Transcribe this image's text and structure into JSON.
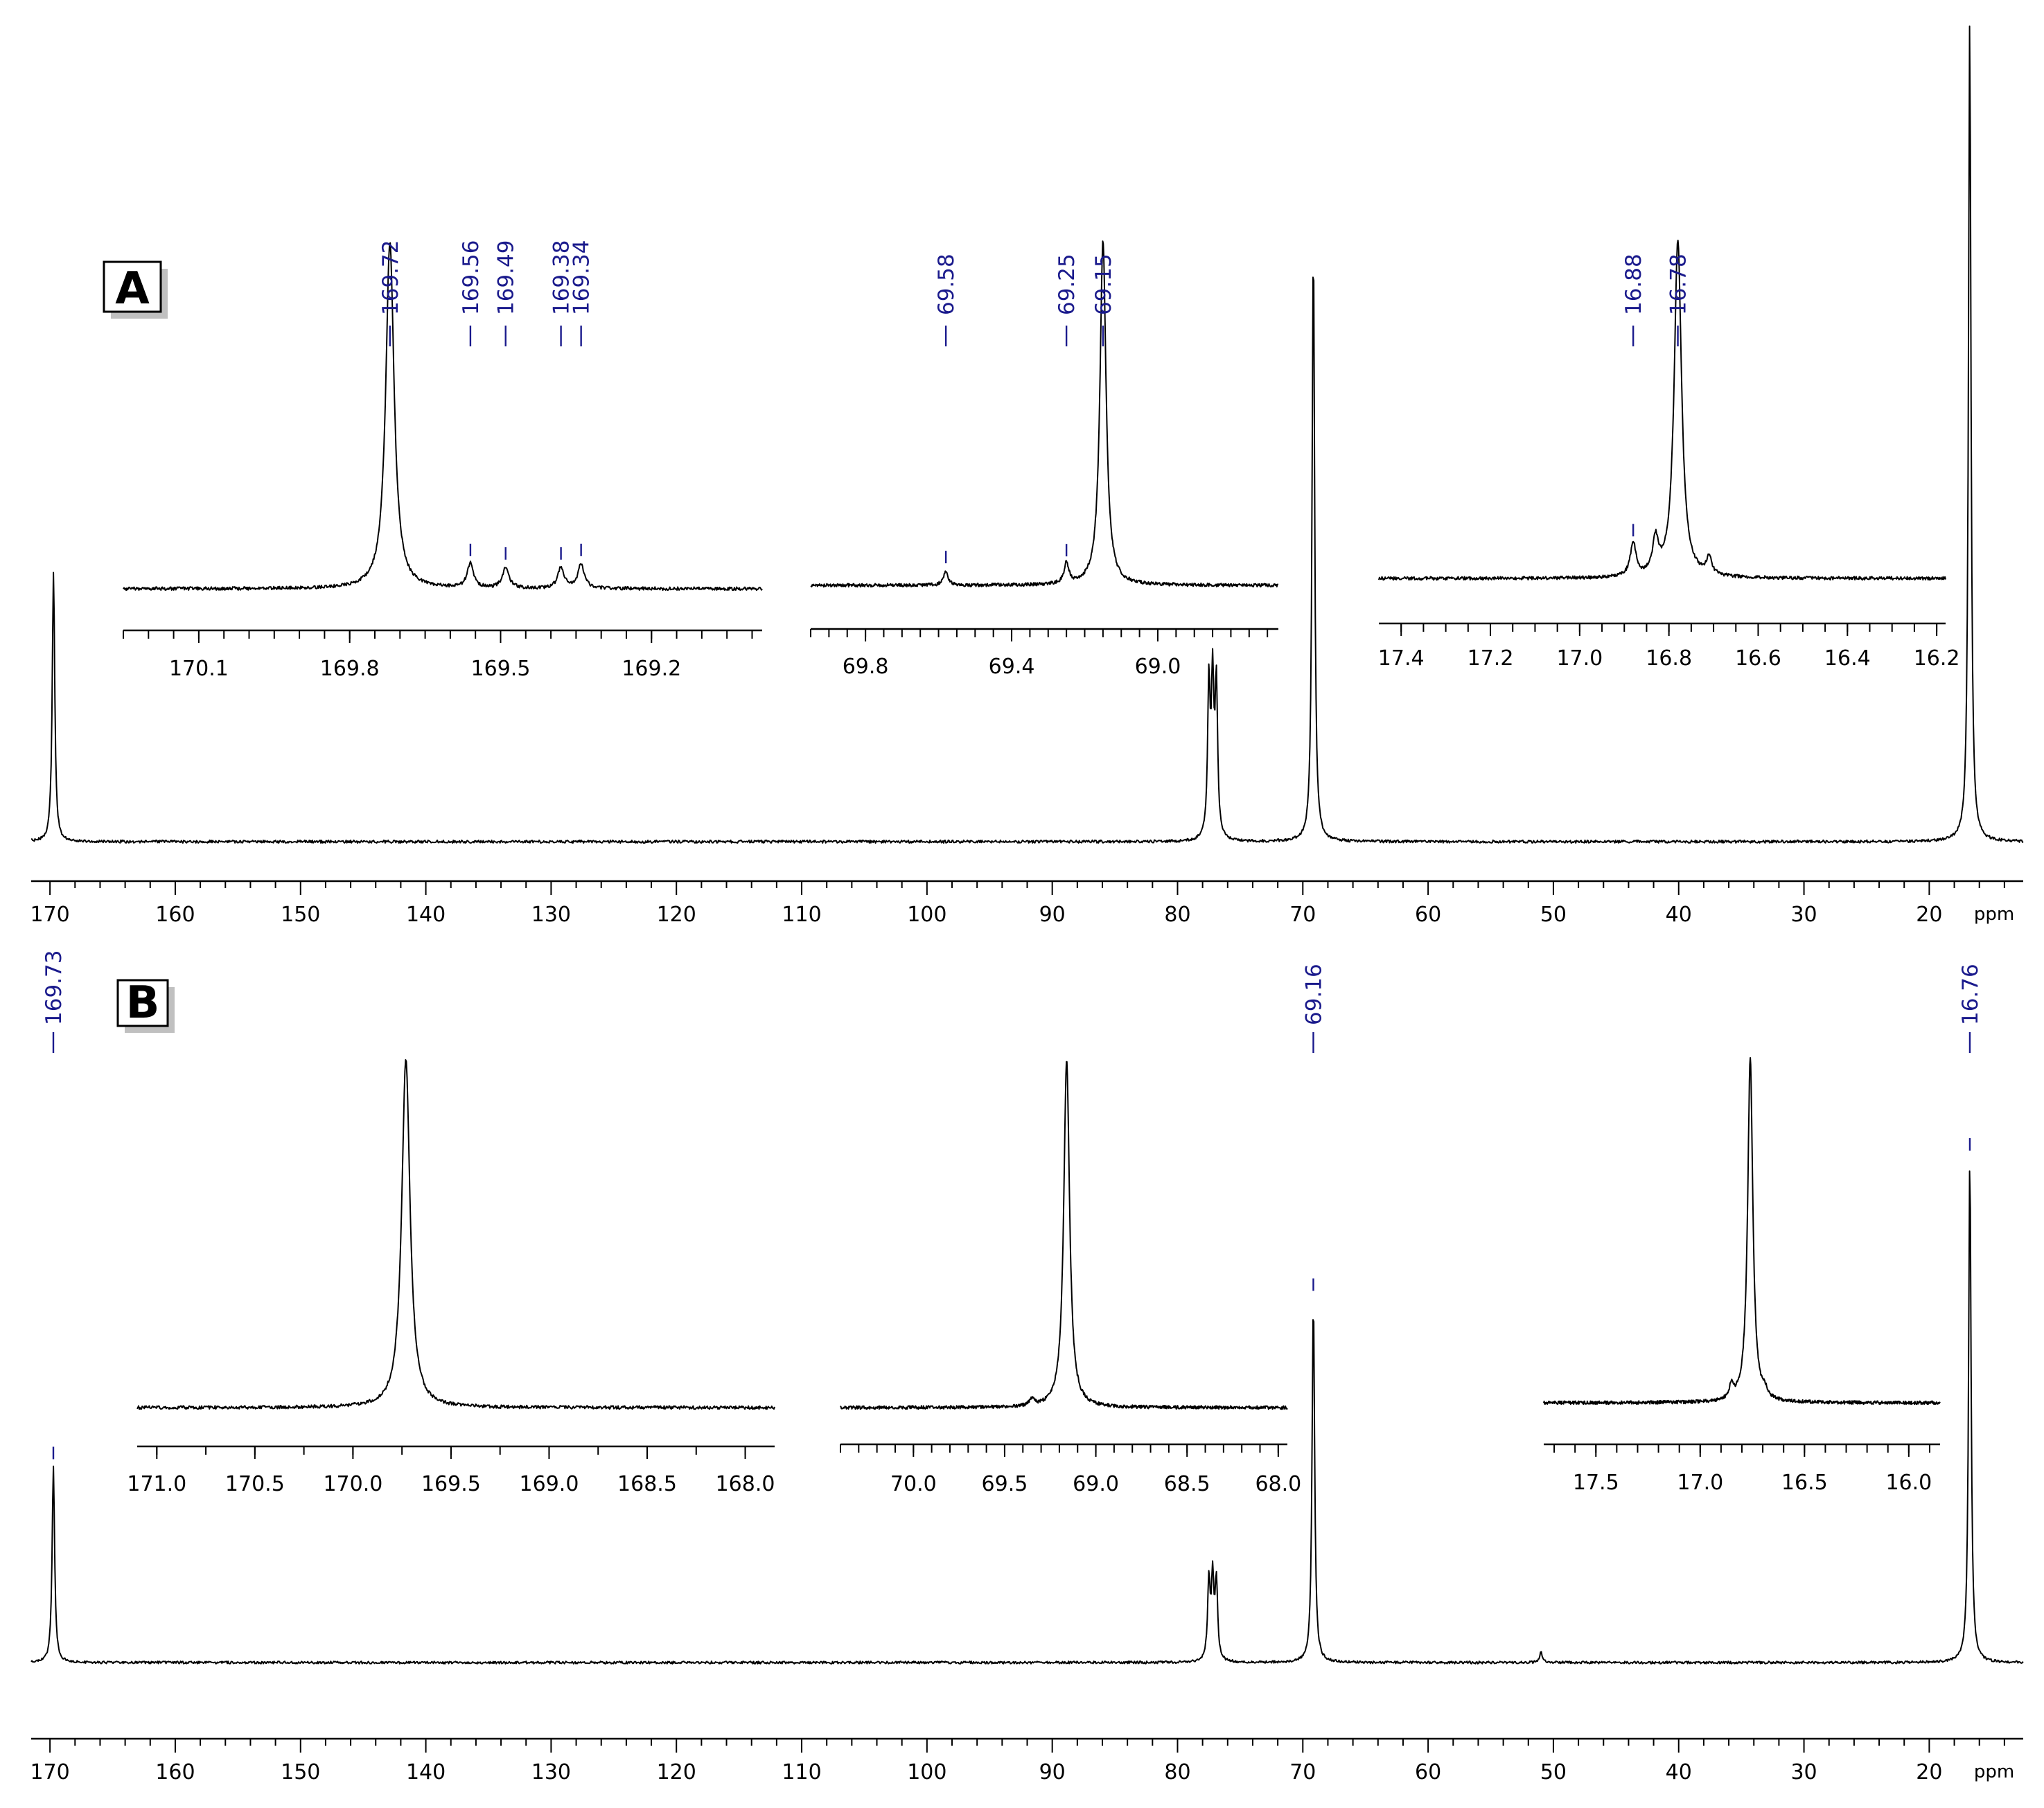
{
  "chart_data": [
    {
      "id": "A",
      "type": "line",
      "panel_label": "A",
      "x_unit": "ppm",
      "x_range": [
        171.5,
        12.5
      ],
      "x_reversed": true,
      "x_ticks": [
        170,
        160,
        150,
        140,
        130,
        120,
        110,
        100,
        90,
        80,
        70,
        60,
        50,
        40,
        30,
        20
      ],
      "peaks": [
        {
          "ppm": 169.72,
          "height": 0.33
        },
        {
          "ppm": 77.5,
          "height": 0.185
        },
        {
          "ppm": 77.2,
          "height": 0.185
        },
        {
          "ppm": 76.9,
          "height": 0.185
        },
        {
          "ppm": 69.16,
          "height": 0.73
        },
        {
          "ppm": 16.77,
          "height": 1.0
        }
      ],
      "insets": [
        {
          "x_range": [
            170.25,
            168.98
          ],
          "x_ticks": [
            170.1,
            169.8,
            169.5,
            169.2
          ],
          "tick_decimals": 1,
          "peak_labels": [
            "169.72",
            "169.56",
            "169.49",
            "169.38",
            "169.34"
          ],
          "peaks": [
            {
              "ppm": 169.72,
              "height": 1.0
            },
            {
              "ppm": 169.56,
              "height": 0.07
            },
            {
              "ppm": 169.49,
              "height": 0.06
            },
            {
              "ppm": 169.38,
              "height": 0.06
            },
            {
              "ppm": 169.34,
              "height": 0.07
            }
          ]
        },
        {
          "x_range": [
            69.95,
            68.67
          ],
          "x_ticks": [
            69.8,
            69.4,
            69.0
          ],
          "tick_decimals": 1,
          "peak_labels": [
            "69.58",
            "69.25",
            "69.15"
          ],
          "peaks": [
            {
              "ppm": 69.58,
              "height": 0.04
            },
            {
              "ppm": 69.25,
              "height": 0.06
            },
            {
              "ppm": 69.15,
              "height": 1.0
            }
          ]
        },
        {
          "x_range": [
            17.45,
            16.18
          ],
          "x_ticks": [
            17.4,
            17.2,
            17.0,
            16.8,
            16.6,
            16.4,
            16.2
          ],
          "tick_decimals": 1,
          "peak_labels": [
            "16.88",
            "16.78"
          ],
          "peaks": [
            {
              "ppm": 16.88,
              "height": 0.1
            },
            {
              "ppm": 16.83,
              "height": 0.1
            },
            {
              "ppm": 16.78,
              "height": 1.0
            },
            {
              "ppm": 16.71,
              "height": 0.05
            }
          ]
        }
      ]
    },
    {
      "id": "B",
      "type": "line",
      "panel_label": "B",
      "x_unit": "ppm",
      "x_range": [
        171.5,
        12.5
      ],
      "x_reversed": true,
      "x_ticks": [
        170,
        160,
        150,
        140,
        130,
        120,
        110,
        100,
        90,
        80,
        70,
        60,
        50,
        40,
        30,
        20
      ],
      "peak_labels": [
        "169.73",
        "69.16",
        "16.76"
      ],
      "peaks": [
        {
          "ppm": 169.73,
          "height": 0.35
        },
        {
          "ppm": 77.5,
          "height": 0.14
        },
        {
          "ppm": 77.2,
          "height": 0.14
        },
        {
          "ppm": 76.9,
          "height": 0.14
        },
        {
          "ppm": 69.16,
          "height": 0.65
        },
        {
          "ppm": 51.0,
          "height": 0.02
        },
        {
          "ppm": 16.76,
          "height": 0.9
        }
      ],
      "insets": [
        {
          "x_range": [
            171.1,
            167.85
          ],
          "x_ticks": [
            171.0,
            170.5,
            170.0,
            169.5,
            169.0,
            168.5,
            168.0
          ],
          "tick_decimals": 1,
          "peaks": [
            {
              "ppm": 169.73,
              "height": 1.0
            }
          ]
        },
        {
          "x_range": [
            70.4,
            67.95
          ],
          "x_ticks": [
            70.0,
            69.5,
            69.0,
            68.5,
            68.0
          ],
          "tick_decimals": 1,
          "peaks": [
            {
              "ppm": 69.16,
              "height": 1.0
            },
            {
              "ppm": 69.35,
              "height": 0.02
            }
          ]
        },
        {
          "x_range": [
            17.75,
            15.85
          ],
          "x_ticks": [
            17.5,
            17.0,
            16.5,
            16.0
          ],
          "tick_decimals": 1,
          "peaks": [
            {
              "ppm": 16.76,
              "height": 1.0
            },
            {
              "ppm": 16.85,
              "height": 0.04
            },
            {
              "ppm": 16.69,
              "height": 0.02
            }
          ]
        }
      ]
    }
  ],
  "colors": {
    "spectrum": "#000000",
    "peak_label": "#1a1a8c",
    "panel_shadow": "#c0c0c0"
  }
}
